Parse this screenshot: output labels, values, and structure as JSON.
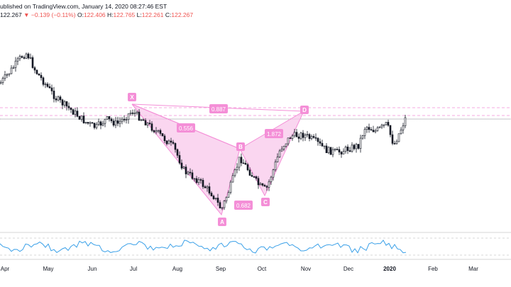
{
  "header": {
    "published": "ublished on TradingView.com, January 14, 2020 08:27:46 EST",
    "last": "122.267",
    "change": "▼ −0.139 (−0.11%)",
    "o_label": "O:",
    "o_val": "122.406",
    "h_label": "H:",
    "h_val": "122.765",
    "l_label": "L:",
    "l_val": "122.261",
    "c_label": "C:",
    "c_val": "122.267"
  },
  "pattern": {
    "points": [
      "X",
      "A",
      "B",
      "C",
      "D"
    ],
    "ratios": [
      "0.556",
      "0.682",
      "1.872",
      "0.887"
    ],
    "color": "#f48fd7"
  },
  "x_axis": {
    "ticks": [
      "Apr",
      "May",
      "Jun",
      "Jul",
      "Aug",
      "Sep",
      "Oct",
      "Nov",
      "Dec",
      "2020",
      "Feb",
      "Mar"
    ]
  },
  "colors": {
    "candle": "#131722",
    "oscillator": "#3aa0e8",
    "pattern_fill": "#f8c4ea",
    "pattern_line": "#f48fd7",
    "dashed_line": "#f48fd7"
  }
}
